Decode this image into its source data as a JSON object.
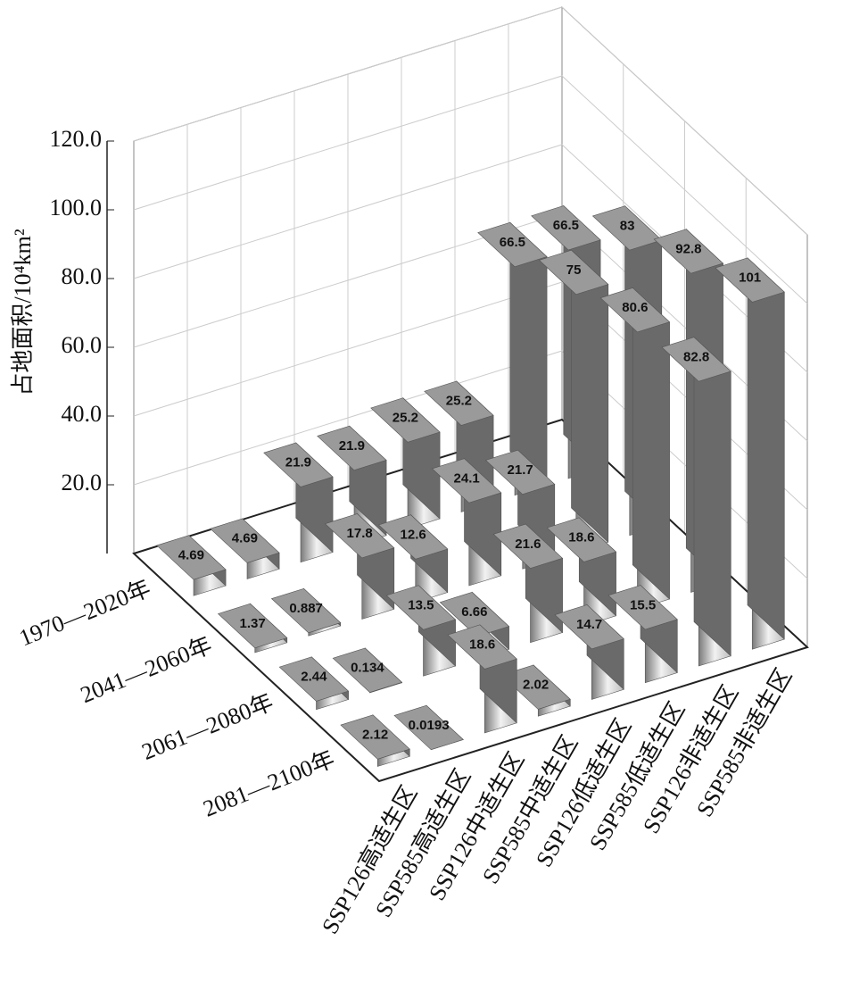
{
  "chart_data": {
    "type": "bar3d",
    "y_label": "占地面积/10⁴km²",
    "categories": [
      "SSP126高适生区",
      "SSP585高适生区",
      "SSP126中适生区",
      "SSP585中适生区",
      "SSP126低适生区",
      "SSP585低适生区",
      "SSP126非适生区",
      "SSP585非适生区"
    ],
    "series": [
      {
        "name": "1970—2020年",
        "color": "#9a9a9a",
        "values": [
          4.69,
          4.69,
          21.9,
          21.9,
          25.2,
          25.2,
          66.5,
          66.5
        ]
      },
      {
        "name": "2041—2060年",
        "color": "#9a9a9a",
        "values": [
          1.37,
          0.887,
          17.8,
          12.6,
          24.1,
          21.7,
          75,
          83
        ]
      },
      {
        "name": "2061—2080年",
        "color": "#9a9a9a",
        "values": [
          2.44,
          0.134,
          13.5,
          6.66,
          21.6,
          18.6,
          80.6,
          92.8
        ]
      },
      {
        "name": "2081—2100年",
        "color": "#9a9a9a",
        "values": [
          2.12,
          0.0193,
          18.6,
          2.02,
          14.7,
          15.5,
          82.8,
          101
        ]
      }
    ],
    "ylim": [
      0,
      120
    ],
    "yticks": [
      {
        "value": 20,
        "label": "20.0"
      },
      {
        "value": 40,
        "label": "40.0"
      },
      {
        "value": 60,
        "label": "60.0"
      },
      {
        "value": 80,
        "label": "80.0"
      },
      {
        "value": 100,
        "label": "100.0"
      },
      {
        "value": 120,
        "label": "120.0"
      }
    ],
    "grid": true
  }
}
